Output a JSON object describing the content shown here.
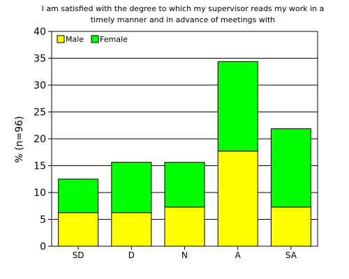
{
  "chart_data": {
    "type": "bar",
    "stacked": true,
    "title_lines": [
      "I am satisfied with the degree to which my supervisor reads my work in a",
      "timely manner and in advance of meetings with"
    ],
    "xlabel": "",
    "ylabel": "% (n=96)",
    "categories": [
      "SD",
      "D",
      "N",
      "A",
      "SA"
    ],
    "series": [
      {
        "name": "Male",
        "color": "#ffff00",
        "values": [
          6.25,
          6.25,
          7.29,
          17.71,
          7.29
        ]
      },
      {
        "name": "Female",
        "color": "#00ff00",
        "values": [
          6.25,
          9.38,
          8.33,
          16.67,
          14.58
        ]
      }
    ],
    "ylim": [
      0,
      40
    ],
    "yticks": [
      0,
      5,
      10,
      15,
      20,
      25,
      30,
      35,
      40
    ],
    "grid": true,
    "legend_position": "top-left"
  }
}
